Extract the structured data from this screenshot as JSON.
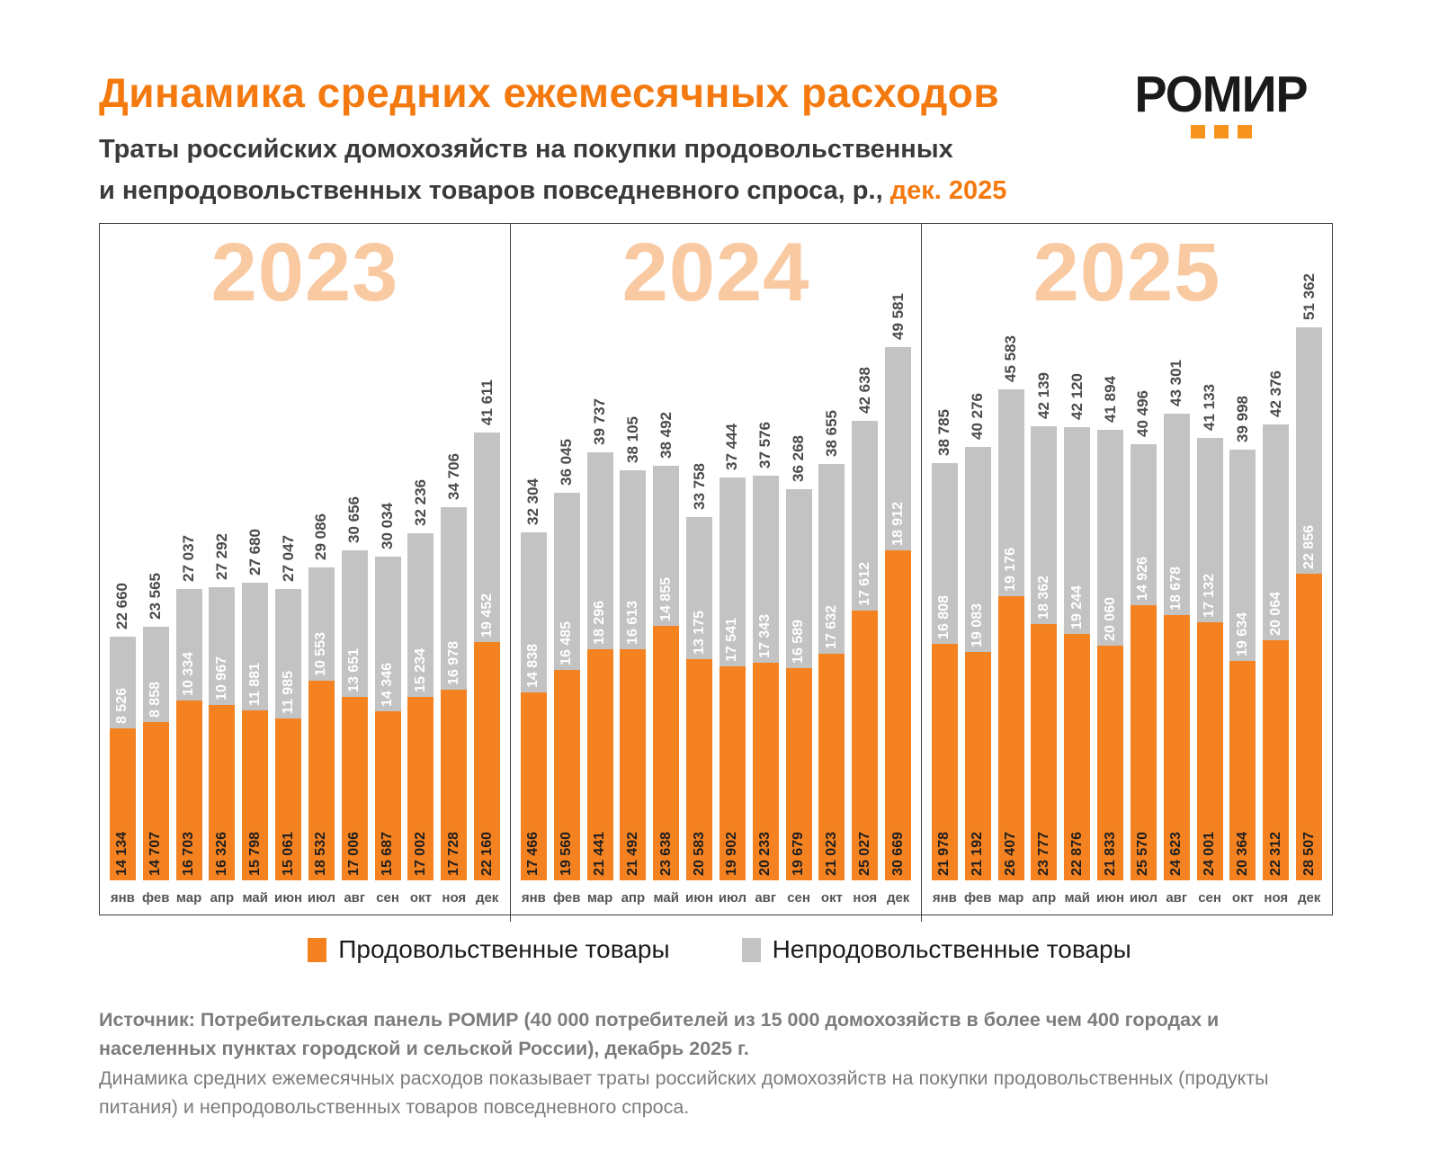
{
  "header": {
    "title": "Динамика средних ежемесячных расходов",
    "subtitle_line1": "Траты российских домохозяйств на покупки продовольственных",
    "subtitle_line2_prefix": "и непродовольственных товаров повседневного спроса, р., ",
    "subtitle_highlight": "дек. 2025",
    "logo_text": "РОМИР"
  },
  "legend": {
    "food_label": "Продовольственные товары",
    "nonfood_label": "Непродовольственные товары"
  },
  "footer": {
    "source": "Источник: Потребительская панель РОМИР (40 000 потребителей из 15 000 домохозяйств в более чем 400 городах и населенных пунктах городской и сельской России), декабрь 2025 г.",
    "description": "Динамика средних ежемесячных расходов показывает траты российских домохозяйств на покупки продовольственных (продукты питания) и непродовольственных товаров повседневного спроса."
  },
  "colors": {
    "food": "#F58220",
    "nonfood": "#C3C3C3",
    "accent_title": "#F4790F",
    "year_watermark": "#F9C9A2",
    "panel_border": "#404040",
    "logo_dots": "#F7941D"
  },
  "chart_data": {
    "type": "bar",
    "stacked": true,
    "unit": "р.",
    "legend_position": "bottom",
    "grid": false,
    "value_scale_max": 51362,
    "months": [
      "янв",
      "фев",
      "мар",
      "апр",
      "май",
      "июн",
      "июл",
      "авг",
      "сен",
      "окт",
      "ноя",
      "дек"
    ],
    "series_names": [
      "Продовольственные товары",
      "Непродовольственные товары"
    ],
    "panels": [
      {
        "year": "2023",
        "food": [
          14134,
          14707,
          16703,
          16326,
          15798,
          15061,
          18532,
          17006,
          15687,
          17002,
          17728,
          22160
        ],
        "nonfood": [
          8526,
          8858,
          10334,
          10967,
          11881,
          11985,
          10553,
          13651,
          14346,
          15234,
          16978,
          19452
        ],
        "totals": [
          22660,
          23565,
          27037,
          27292,
          27680,
          27047,
          29086,
          30656,
          30034,
          32236,
          34706,
          41611
        ]
      },
      {
        "year": "2024",
        "food": [
          17466,
          19560,
          21441,
          21492,
          23638,
          20583,
          19902,
          20233,
          19679,
          21023,
          25027,
          30669
        ],
        "nonfood": [
          14838,
          16485,
          18296,
          16613,
          14855,
          13175,
          17541,
          17343,
          16589,
          17632,
          17612,
          18912
        ],
        "totals": [
          32304,
          36045,
          39737,
          38105,
          38492,
          33758,
          37444,
          37576,
          36268,
          38655,
          42638,
          49581
        ]
      },
      {
        "year": "2025",
        "food": [
          21978,
          21192,
          26407,
          23777,
          22876,
          21833,
          25570,
          24623,
          24001,
          20364,
          22312,
          28507
        ],
        "nonfood": [
          16808,
          19083,
          19176,
          18362,
          19244,
          20060,
          14926,
          18678,
          17132,
          19634,
          20064,
          22856
        ],
        "totals": [
          38785,
          40276,
          45583,
          42139,
          42120,
          41894,
          40496,
          43301,
          41133,
          39998,
          42376,
          51362
        ]
      }
    ]
  }
}
